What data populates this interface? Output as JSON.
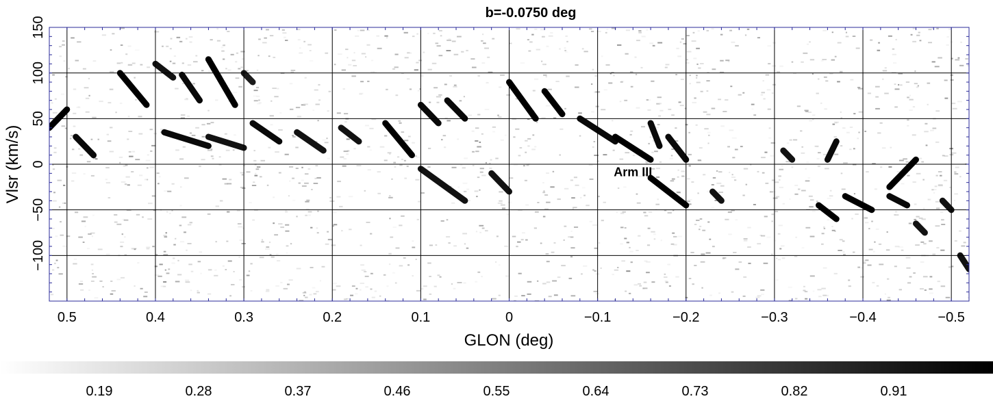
{
  "chart_data": {
    "type": "heatmap",
    "title": "b=-0.0750 deg",
    "xlabel": "GLON (deg)",
    "ylabel": "Vlsr (km/s)",
    "xlim": [
      0.52,
      -0.52
    ],
    "ylim": [
      -150,
      150
    ],
    "x_ticks": [
      0.5,
      0.4,
      0.3,
      0.2,
      0.1,
      0,
      -0.1,
      -0.2,
      -0.3,
      -0.4,
      -0.5
    ],
    "x_tick_labels": [
      "0.5",
      "0.4",
      "0.3",
      "0.2",
      "0.1",
      "0",
      "−0.1",
      "−0.2",
      "−0.3",
      "−0.4",
      "−0.5"
    ],
    "y_ticks": [
      -100,
      -50,
      0,
      50,
      100,
      150
    ],
    "y_tick_labels": [
      "−100",
      "−50",
      "0",
      "50",
      "100",
      "150"
    ],
    "grid": true,
    "colormap": "white-to-black",
    "colorbar": {
      "orientation": "horizontal",
      "position": "bottom",
      "tick_values": [
        0.19,
        0.28,
        0.37,
        0.46,
        0.55,
        0.64,
        0.73,
        0.82,
        0.91
      ],
      "tick_labels": [
        "0.19",
        "0.28",
        "0.37",
        "0.46",
        "0.55",
        "0.64",
        "0.73",
        "0.82",
        "0.91"
      ]
    },
    "annotations": [
      {
        "text": "Arm III",
        "x": -0.14,
        "y": -13
      }
    ],
    "features": [
      {
        "from": [
          0.5,
          60
        ],
        "to": [
          0.52,
          40
        ],
        "intensity": 1.0
      },
      {
        "from": [
          0.49,
          30
        ],
        "to": [
          0.47,
          10
        ],
        "intensity": 0.9
      },
      {
        "from": [
          0.44,
          100
        ],
        "to": [
          0.41,
          65
        ],
        "intensity": 1.0
      },
      {
        "from": [
          0.4,
          110
        ],
        "to": [
          0.38,
          95
        ],
        "intensity": 0.8
      },
      {
        "from": [
          0.37,
          98
        ],
        "to": [
          0.35,
          70
        ],
        "intensity": 0.9
      },
      {
        "from": [
          0.34,
          115
        ],
        "to": [
          0.31,
          65
        ],
        "intensity": 1.0
      },
      {
        "from": [
          0.3,
          100
        ],
        "to": [
          0.29,
          90
        ],
        "intensity": 0.7
      },
      {
        "from": [
          0.39,
          35
        ],
        "to": [
          0.34,
          20
        ],
        "intensity": 0.9
      },
      {
        "from": [
          0.34,
          30
        ],
        "to": [
          0.3,
          18
        ],
        "intensity": 0.8
      },
      {
        "from": [
          0.29,
          45
        ],
        "to": [
          0.26,
          25
        ],
        "intensity": 0.9
      },
      {
        "from": [
          0.24,
          35
        ],
        "to": [
          0.21,
          15
        ],
        "intensity": 0.8
      },
      {
        "from": [
          0.19,
          40
        ],
        "to": [
          0.17,
          25
        ],
        "intensity": 0.8
      },
      {
        "from": [
          0.14,
          45
        ],
        "to": [
          0.11,
          10
        ],
        "intensity": 1.0
      },
      {
        "from": [
          0.1,
          65
        ],
        "to": [
          0.08,
          45
        ],
        "intensity": 0.9
      },
      {
        "from": [
          0.07,
          70
        ],
        "to": [
          0.05,
          50
        ],
        "intensity": 0.9
      },
      {
        "from": [
          0.1,
          -5
        ],
        "to": [
          0.05,
          -40
        ],
        "intensity": 0.8
      },
      {
        "from": [
          0.02,
          -10
        ],
        "to": [
          0.0,
          -30
        ],
        "intensity": 0.8
      },
      {
        "from": [
          0.0,
          90
        ],
        "to": [
          -0.03,
          50
        ],
        "intensity": 1.0
      },
      {
        "from": [
          -0.04,
          80
        ],
        "to": [
          -0.06,
          55
        ],
        "intensity": 1.0
      },
      {
        "from": [
          -0.08,
          50
        ],
        "to": [
          -0.12,
          25
        ],
        "intensity": 0.9
      },
      {
        "from": [
          -0.12,
          30
        ],
        "to": [
          -0.16,
          5
        ],
        "intensity": 1.0
      },
      {
        "from": [
          -0.16,
          45
        ],
        "to": [
          -0.17,
          20
        ],
        "intensity": 0.9
      },
      {
        "from": [
          -0.18,
          30
        ],
        "to": [
          -0.2,
          5
        ],
        "intensity": 0.9
      },
      {
        "from": [
          -0.16,
          -15
        ],
        "to": [
          -0.2,
          -45
        ],
        "intensity": 1.0
      },
      {
        "from": [
          -0.23,
          -30
        ],
        "to": [
          -0.24,
          -40
        ],
        "intensity": 0.8
      },
      {
        "from": [
          -0.31,
          15
        ],
        "to": [
          -0.32,
          5
        ],
        "intensity": 0.8
      },
      {
        "from": [
          -0.37,
          25
        ],
        "to": [
          -0.36,
          5
        ],
        "intensity": 0.9
      },
      {
        "from": [
          -0.35,
          -45
        ],
        "to": [
          -0.37,
          -60
        ],
        "intensity": 1.0
      },
      {
        "from": [
          -0.38,
          -35
        ],
        "to": [
          -0.41,
          -50
        ],
        "intensity": 1.0
      },
      {
        "from": [
          -0.46,
          5
        ],
        "to": [
          -0.43,
          -25
        ],
        "intensity": 1.0
      },
      {
        "from": [
          -0.43,
          -35
        ],
        "to": [
          -0.45,
          -45
        ],
        "intensity": 0.9
      },
      {
        "from": [
          -0.46,
          -65
        ],
        "to": [
          -0.47,
          -75
        ],
        "intensity": 0.8
      },
      {
        "from": [
          -0.49,
          -40
        ],
        "to": [
          -0.5,
          -50
        ],
        "intensity": 0.8
      },
      {
        "from": [
          -0.51,
          -100
        ],
        "to": [
          -0.52,
          -115
        ],
        "intensity": 0.8
      }
    ]
  }
}
